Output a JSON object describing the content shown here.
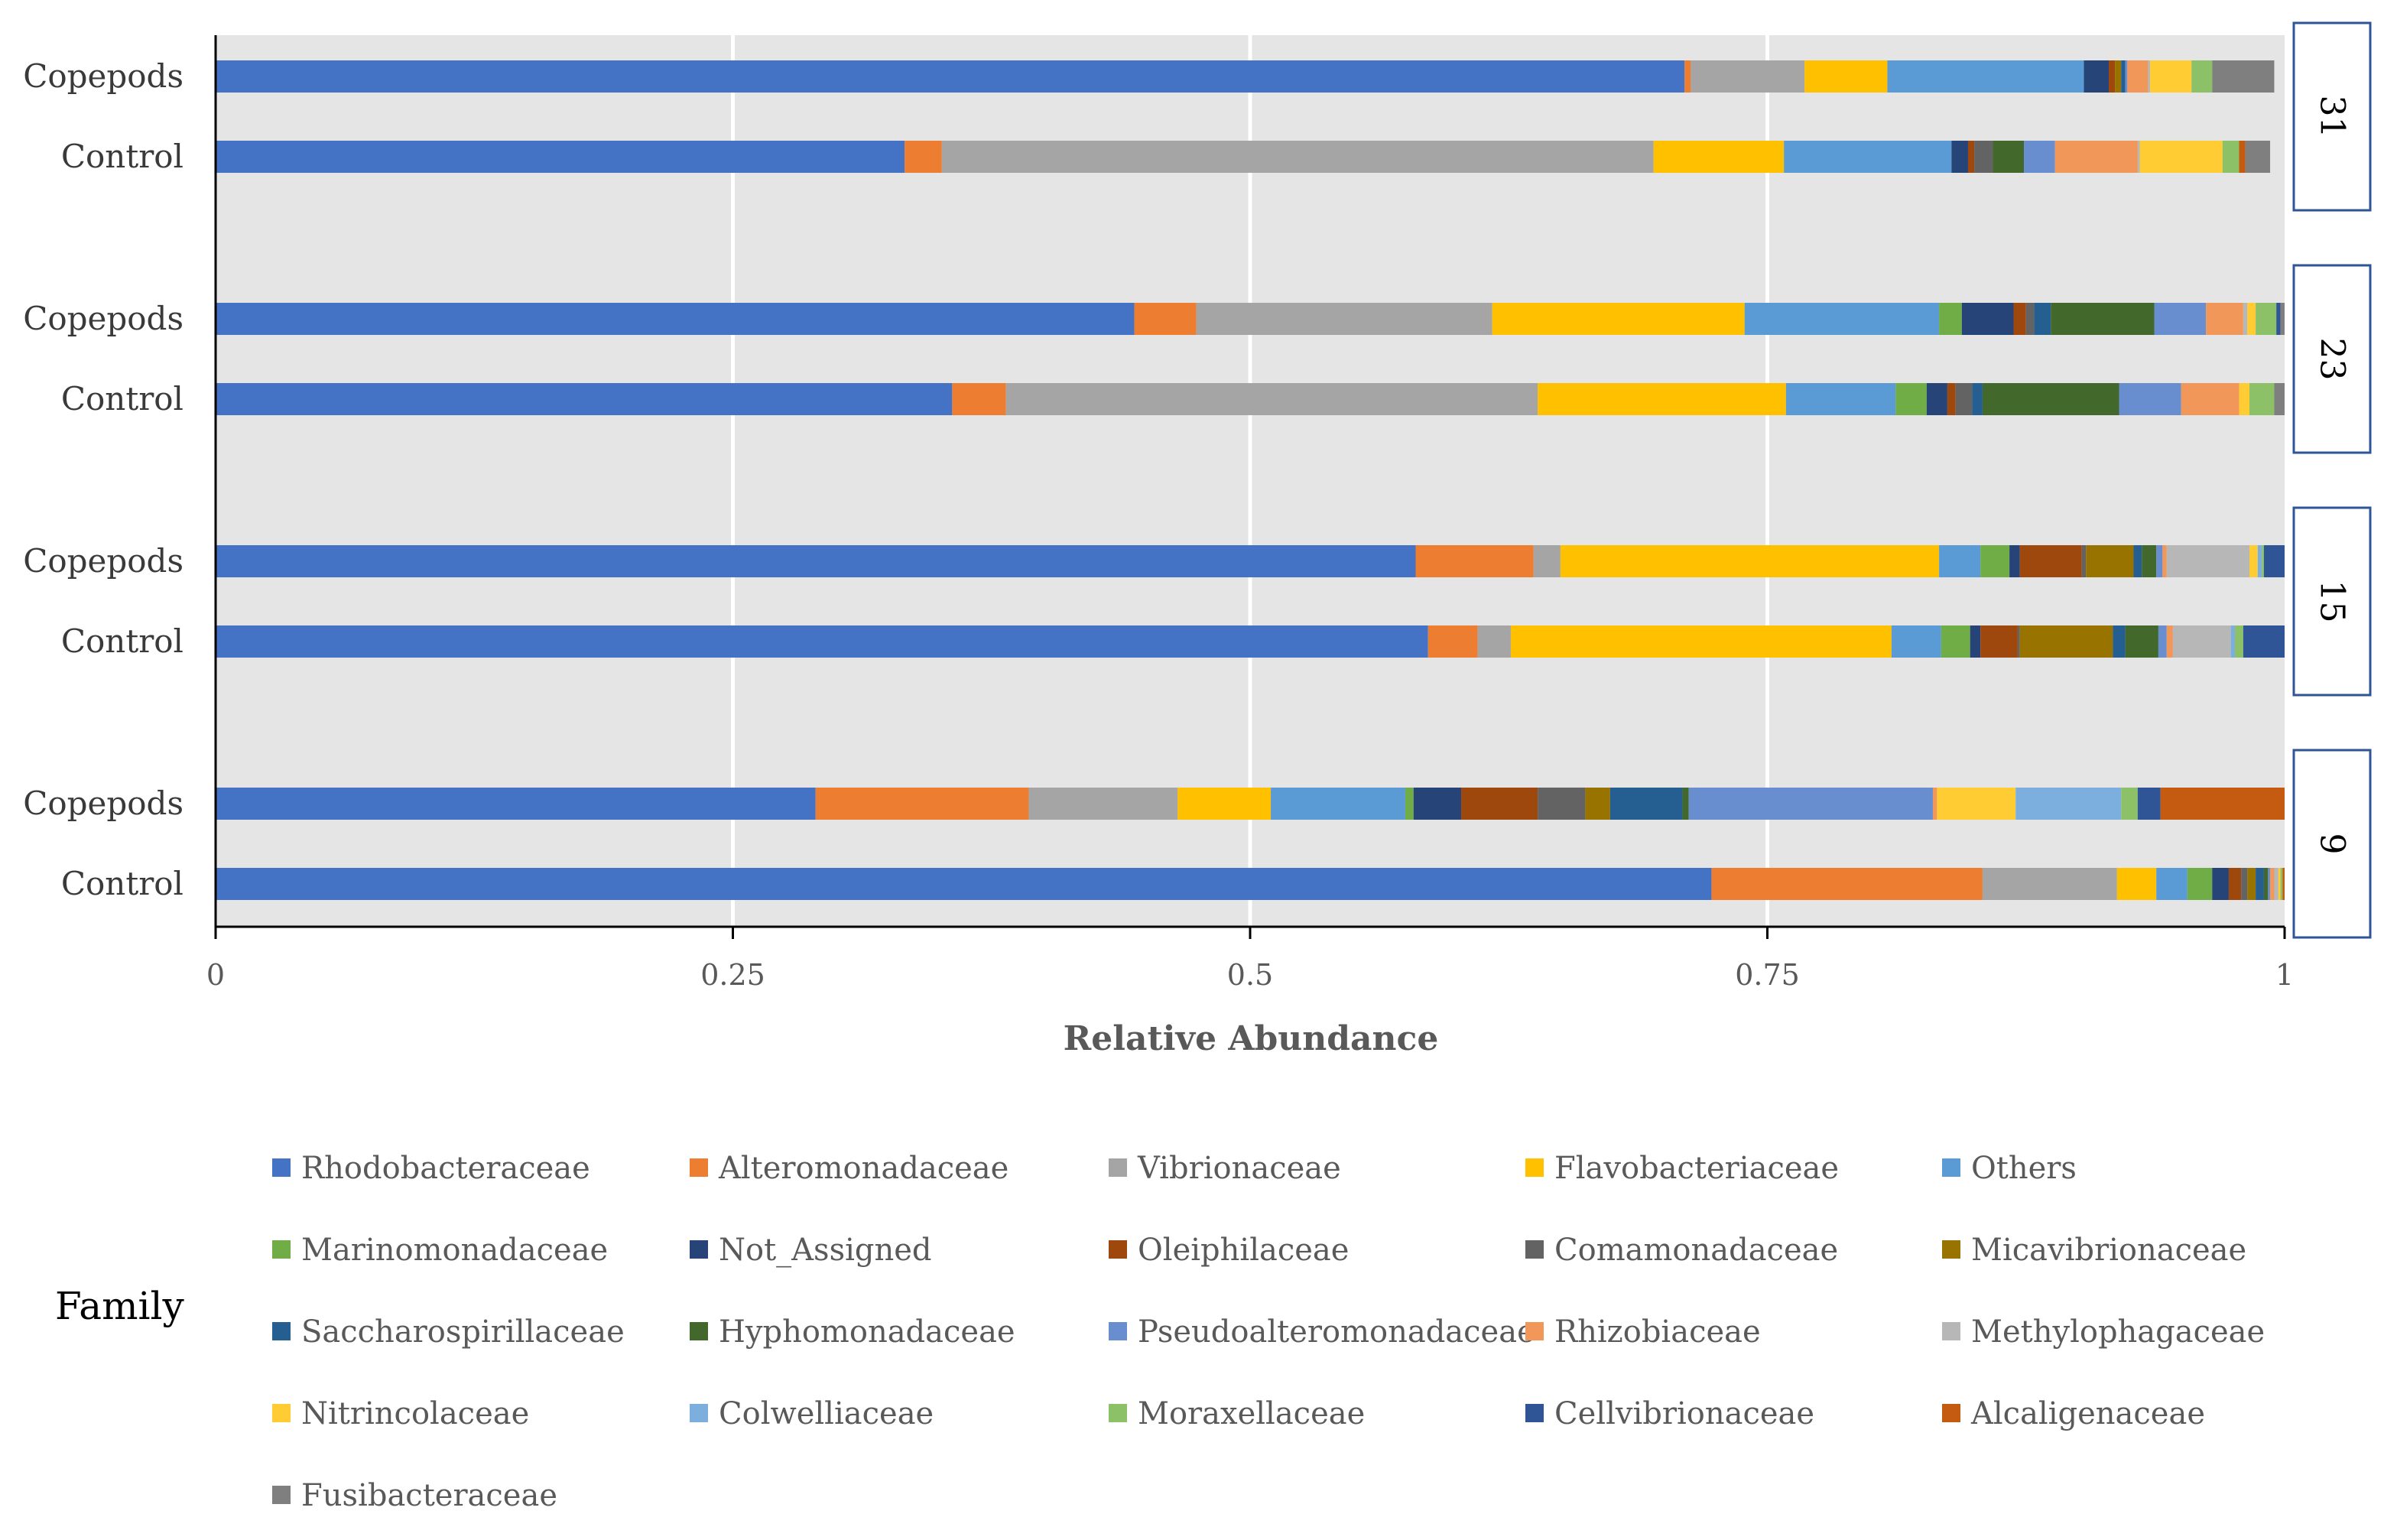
{
  "chart_data": {
    "type": "bar",
    "orientation": "horizontal",
    "stacked": true,
    "xlabel": "Relative Abundance",
    "xlim": [
      0,
      1
    ],
    "xticks": [
      0,
      0.25,
      0.5,
      0.75,
      1
    ],
    "xtick_labels": [
      "0",
      "0.25",
      "0.5",
      "0.75",
      "1"
    ],
    "grid": true,
    "legend_title": "Family",
    "legend_position": "bottom",
    "families": [
      {
        "name": "Rhodobacteraceae",
        "color": "#4472C4"
      },
      {
        "name": "Alteromonadaceae",
        "color": "#ED7D31"
      },
      {
        "name": "Vibrionaceae",
        "color": "#A5A5A5"
      },
      {
        "name": "Flavobacteriaceae",
        "color": "#FFC000"
      },
      {
        "name": "Others",
        "color": "#5B9BD5"
      },
      {
        "name": "Marinomonadaceae",
        "color": "#70AD47"
      },
      {
        "name": "Not_Assigned",
        "color": "#264478"
      },
      {
        "name": "Oleiphilaceae",
        "color": "#9E480E"
      },
      {
        "name": "Comamonadaceae",
        "color": "#636363"
      },
      {
        "name": "Micavibrionaceae",
        "color": "#997300"
      },
      {
        "name": "Saccharospirillaceae",
        "color": "#255E91"
      },
      {
        "name": "Hyphomonadaceae",
        "color": "#43682B"
      },
      {
        "name": "Pseudoalteromonadaceae",
        "color": "#698ED0"
      },
      {
        "name": "Rhizobiaceae",
        "color": "#F1975A"
      },
      {
        "name": "Methylophagaceae",
        "color": "#B7B7B7"
      },
      {
        "name": "Nitrincolaceae",
        "color": "#FFCD33"
      },
      {
        "name": "Colwelliaceae",
        "color": "#7CAFDD"
      },
      {
        "name": "Moraxellaceae",
        "color": "#8CC168"
      },
      {
        "name": "Cellvibrionaceae",
        "color": "#2F5597"
      },
      {
        "name": "Alcaligenaceae",
        "color": "#C55A11"
      },
      {
        "name": "Fusibacteraceae",
        "color": "#7F7F7F"
      }
    ],
    "groups": [
      {
        "label": "31",
        "bars": [
          {
            "label": "Copepods",
            "values": [
              0.71,
              0.003,
              0.055,
              0.04,
              0.095,
              0.0,
              0.012,
              0.003,
              0.0,
              0.003,
              0.002,
              0.0,
              0.001,
              0.01,
              0.001,
              0.02,
              0.0,
              0.01,
              0.0,
              0.0,
              0.03
            ]
          },
          {
            "label": "Control",
            "values": [
              0.333,
              0.018,
              0.344,
              0.063,
              0.081,
              0.0,
              0.008,
              0.003,
              0.009,
              0.0,
              0.0,
              0.015,
              0.015,
              0.04,
              0.001,
              0.04,
              0.0,
              0.008,
              0.0,
              0.003,
              0.012
            ]
          }
        ]
      },
      {
        "label": "23",
        "bars": [
          {
            "label": "Copepods",
            "values": [
              0.444,
              0.03,
              0.143,
              0.122,
              0.094,
              0.011,
              0.025,
              0.006,
              0.004,
              0.0,
              0.008,
              0.05,
              0.025,
              0.018,
              0.002,
              0.004,
              0.0,
              0.01,
              0.002,
              0.0,
              0.002
            ]
          },
          {
            "label": "Control",
            "values": [
              0.356,
              0.026,
              0.257,
              0.12,
              0.053,
              0.015,
              0.01,
              0.004,
              0.008,
              0.0,
              0.005,
              0.066,
              0.03,
              0.028,
              0.0,
              0.005,
              0.0,
              0.012,
              0.0,
              0.0,
              0.005
            ]
          }
        ]
      },
      {
        "label": "15",
        "bars": [
          {
            "label": "Copepods",
            "values": [
              0.58,
              0.057,
              0.013,
              0.183,
              0.02,
              0.014,
              0.005,
              0.03,
              0.002,
              0.023,
              0.004,
              0.007,
              0.003,
              0.002,
              0.04,
              0.004,
              0.002,
              0.001,
              0.01,
              0.0,
              0.0
            ]
          },
          {
            "label": "Control",
            "values": [
              0.586,
              0.024,
              0.016,
              0.184,
              0.024,
              0.014,
              0.005,
              0.018,
              0.001,
              0.045,
              0.006,
              0.016,
              0.004,
              0.003,
              0.028,
              0.0,
              0.002,
              0.004,
              0.02,
              0.0,
              0.0
            ]
          }
        ]
      },
      {
        "label": "9",
        "bars": [
          {
            "label": "Copepods",
            "values": [
              0.29,
              0.103,
              0.072,
              0.045,
              0.065,
              0.004,
              0.023,
              0.037,
              0.023,
              0.012,
              0.035,
              0.003,
              0.118,
              0.002,
              0.0,
              0.038,
              0.051,
              0.008,
              0.011,
              0.06,
              0.0
            ]
          },
          {
            "label": "Control",
            "values": [
              0.723,
              0.131,
              0.065,
              0.019,
              0.015,
              0.012,
              0.008,
              0.006,
              0.003,
              0.004,
              0.004,
              0.002,
              0.001,
              0.002,
              0.002,
              0.001,
              0.0,
              0.001,
              0.0,
              0.001,
              0.0
            ]
          }
        ]
      }
    ]
  }
}
